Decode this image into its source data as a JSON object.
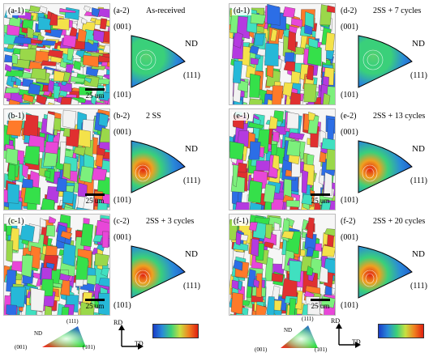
{
  "panels": {
    "a1": {
      "label": "(a-1)",
      "scale": "25 um"
    },
    "a2": {
      "label": "(a-2)",
      "title": "As-received",
      "p001": "(001)",
      "p101": "(101)",
      "p111": "(111)",
      "nd": "ND"
    },
    "b1": {
      "label": "(b-1)",
      "scale": "25 um"
    },
    "b2": {
      "label": "(b-2)",
      "title": "2 SS",
      "p001": "(001)",
      "p101": "(101)",
      "p111": "(111)",
      "nd": "ND"
    },
    "c1": {
      "label": "(c-1)",
      "scale": "25 um"
    },
    "c2": {
      "label": "(c-2)",
      "title": "2SS + 3 cycles",
      "p001": "(001)",
      "p101": "(101)",
      "p111": "(111)",
      "nd": "ND"
    },
    "d1": {
      "label": "(d-1)"
    },
    "d2": {
      "label": "(d-2)",
      "title": "2SS + 7 cycles",
      "p001": "(001)",
      "p101": "(101)",
      "p111": "(111)",
      "nd": "ND"
    },
    "e1": {
      "label": "(e-1)",
      "scale": "25 um"
    },
    "e2": {
      "label": "(e-2)",
      "title": "2SS + 13 cycles",
      "p001": "(001)",
      "p101": "(101)",
      "p111": "(111)",
      "nd": "ND"
    },
    "f1": {
      "label": "(f-1)",
      "scale": "25 um"
    },
    "f2": {
      "label": "(f-2)",
      "title": "2SS + 20 cycles",
      "p001": "(001)",
      "p101": "(101)",
      "p111": "(111)",
      "nd": "ND"
    }
  },
  "legends": {
    "ipf_key": {
      "nd": "ND",
      "p111": "(111)",
      "p001": "(001)",
      "p101": "(101)"
    },
    "axes": {
      "rd": "RD",
      "td": "TD"
    }
  },
  "colors": {
    "ipf_low": "#1a3cc8",
    "ipf_mid": "#3ad07a",
    "ipf_high": "#e02010",
    "grain_palette": [
      "#35e04a",
      "#26b8d8",
      "#e847d8",
      "#f4e24a",
      "#2c6ee6",
      "#ff7a2a",
      "#7cf07c",
      "#b43ae0",
      "#40e0c0",
      "#f2f2f2",
      "#e03030",
      "#9ad84a"
    ]
  }
}
